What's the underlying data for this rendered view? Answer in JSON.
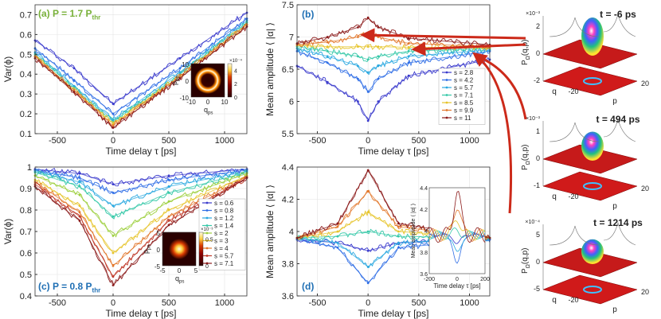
{
  "colors": {
    "series": [
      "#3a3acc",
      "#2f6ee6",
      "#2aa8e0",
      "#35c8a8",
      "#9ccf3c",
      "#e6c42a",
      "#e2762a",
      "#c03a2a",
      "#8b1a1a"
    ],
    "annot_green": "#79b13a",
    "annot_blue": "#1f6fb4",
    "arrow": "#cc2a1a",
    "fit_line": "#7a0f0f",
    "heatmap": [
      "#2a0000",
      "#8b0000",
      "#d83a00",
      "#ff8a00",
      "#ffd040",
      "#fffbe0"
    ]
  },
  "chart_data": [
    {
      "id": "a",
      "type": "line",
      "panel_label": "(a) P = 1.7 P",
      "panel_sub": "thr",
      "xlabel": "Time delay τ [ps]",
      "ylabel": "Var(ϕ)",
      "xlim": [
        -700,
        1200
      ],
      "ylim": [
        0.1,
        0.75
      ],
      "xticks": [
        -500,
        0,
        500,
        1000
      ],
      "yticks": [
        0.1,
        0.2,
        0.3,
        0.4,
        0.5,
        0.6,
        0.7
      ],
      "series": [
        {
          "name": "s = 2.8",
          "x": [
            -700,
            -350,
            0,
            600,
            1200
          ],
          "y": [
            0.57,
            0.43,
            0.25,
            0.48,
            0.71
          ]
        },
        {
          "name": "s = 4.2",
          "x": [
            -700,
            -350,
            0,
            600,
            1200
          ],
          "y": [
            0.53,
            0.37,
            0.2,
            0.43,
            0.68
          ]
        },
        {
          "name": "s = 5.7",
          "x": [
            -700,
            -350,
            0,
            600,
            1200
          ],
          "y": [
            0.51,
            0.34,
            0.17,
            0.41,
            0.67
          ]
        },
        {
          "name": "s = 7.1",
          "x": [
            -700,
            -350,
            0,
            600,
            1200
          ],
          "y": [
            0.5,
            0.33,
            0.16,
            0.4,
            0.66
          ]
        },
        {
          "name": "s = 8.5",
          "x": [
            -700,
            -350,
            0,
            600,
            1200
          ],
          "y": [
            0.49,
            0.32,
            0.15,
            0.39,
            0.65
          ]
        },
        {
          "name": "s = 9.9",
          "x": [
            -700,
            -350,
            0,
            600,
            1200
          ],
          "y": [
            0.49,
            0.32,
            0.14,
            0.39,
            0.65
          ]
        },
        {
          "name": "s = 11",
          "x": [
            -700,
            -350,
            0,
            600,
            1200
          ],
          "y": [
            0.48,
            0.31,
            0.13,
            0.38,
            0.64
          ]
        }
      ],
      "inset": {
        "kind": "ring",
        "xlabel": "q",
        "xlabel_sub": "ps",
        "ylabel": "p",
        "ylabel_sub": "ps",
        "xticks": [
          -10,
          0,
          10
        ],
        "yticks": [
          10,
          0,
          -10
        ],
        "cbar_ticks": [
          0,
          2,
          4
        ],
        "cbar_exp": "×10⁻⁴"
      }
    },
    {
      "id": "b",
      "type": "line",
      "panel_label": "(b)",
      "xlabel": "Time delay τ [ps]",
      "ylabel": "Mean amplitude ⟨ |α| ⟩",
      "xlim": [
        -700,
        1200
      ],
      "ylim": [
        5.5,
        7.5
      ],
      "xticks": [
        -500,
        0,
        500,
        1000
      ],
      "yticks": [
        5.5,
        6,
        6.5,
        7,
        7.5
      ],
      "series": [
        {
          "name": "s = 2.8",
          "x": [
            -700,
            -400,
            -100,
            0,
            100,
            400,
            1200
          ],
          "y": [
            6.55,
            6.3,
            6.0,
            5.7,
            6.0,
            6.4,
            6.65
          ]
        },
        {
          "name": "s = 4.2",
          "x": [
            -700,
            -400,
            -100,
            0,
            100,
            400,
            1200
          ],
          "y": [
            6.78,
            6.6,
            6.35,
            6.15,
            6.35,
            6.6,
            6.78
          ]
        },
        {
          "name": "s = 5.7",
          "x": [
            -700,
            -400,
            -100,
            0,
            100,
            400,
            1200
          ],
          "y": [
            6.82,
            6.7,
            6.55,
            6.45,
            6.55,
            6.7,
            6.8
          ]
        },
        {
          "name": "s = 7.1",
          "x": [
            -700,
            -400,
            -100,
            0,
            100,
            400,
            1200
          ],
          "y": [
            6.85,
            6.78,
            6.7,
            6.65,
            6.7,
            6.78,
            6.82
          ]
        },
        {
          "name": "s = 8.5",
          "x": [
            -700,
            -400,
            -100,
            0,
            100,
            400,
            1200
          ],
          "y": [
            6.87,
            6.85,
            6.85,
            6.85,
            6.85,
            6.84,
            6.83
          ]
        },
        {
          "name": "s = 9.9",
          "x": [
            -700,
            -400,
            -100,
            0,
            100,
            400,
            1200
          ],
          "y": [
            6.88,
            6.92,
            7.0,
            7.05,
            7.0,
            6.9,
            6.85
          ]
        },
        {
          "name": "s = 11",
          "x": [
            -700,
            -400,
            -100,
            0,
            100,
            400,
            1200
          ],
          "y": [
            6.9,
            7.0,
            7.15,
            7.3,
            7.15,
            6.98,
            6.88
          ]
        }
      ],
      "legend": [
        "s = 2.8",
        "s = 4.2",
        "s = 5.7",
        "s = 7.1",
        "s = 8.5",
        "s = 9.9",
        "s = 11"
      ]
    },
    {
      "id": "c",
      "type": "line",
      "panel_label": "(c) P = 0.8 P",
      "panel_sub": "thr",
      "xlabel": "Time delay τ [ps]",
      "ylabel": "Var(ϕ)",
      "xlim": [
        -700,
        1200
      ],
      "ylim": [
        0.4,
        1.0
      ],
      "xticks": [
        -500,
        0,
        500,
        1000
      ],
      "yticks": [
        0.4,
        0.5,
        0.6,
        0.7,
        0.8,
        0.9,
        1.0
      ],
      "series": [
        {
          "name": "s = 0.6",
          "x": [
            -700,
            -300,
            0,
            500,
            1200
          ],
          "y": [
            0.99,
            0.97,
            0.92,
            0.96,
            0.99
          ]
        },
        {
          "name": "s = 0.8",
          "x": [
            -700,
            -300,
            0,
            500,
            1200
          ],
          "y": [
            0.985,
            0.95,
            0.88,
            0.94,
            0.985
          ]
        },
        {
          "name": "s = 1.2",
          "x": [
            -700,
            -300,
            0,
            500,
            1200
          ],
          "y": [
            0.98,
            0.93,
            0.82,
            0.91,
            0.98
          ]
        },
        {
          "name": "s = 1.4",
          "x": [
            -700,
            -300,
            0,
            500,
            1200
          ],
          "y": [
            0.975,
            0.91,
            0.77,
            0.88,
            0.975
          ]
        },
        {
          "name": "s = 2",
          "x": [
            -700,
            -300,
            0,
            500,
            1200
          ],
          "y": [
            0.96,
            0.87,
            0.68,
            0.84,
            0.97
          ]
        },
        {
          "name": "s = 3",
          "x": [
            -700,
            -300,
            0,
            500,
            1200
          ],
          "y": [
            0.94,
            0.82,
            0.6,
            0.8,
            0.96
          ]
        },
        {
          "name": "s = 4",
          "x": [
            -700,
            -300,
            0,
            500,
            1200
          ],
          "y": [
            0.93,
            0.79,
            0.54,
            0.77,
            0.955
          ]
        },
        {
          "name": "s = 5.7",
          "x": [
            -700,
            -300,
            0,
            500,
            1200
          ],
          "y": [
            0.92,
            0.77,
            0.49,
            0.75,
            0.95
          ]
        },
        {
          "name": "s = 7.1",
          "x": [
            -700,
            -300,
            0,
            500,
            1200
          ],
          "y": [
            0.91,
            0.75,
            0.45,
            0.73,
            0.95
          ]
        }
      ],
      "legend": [
        "s = 0.6",
        "s = 0.8",
        "s = 1.2",
        "s = 1.4",
        "s = 2",
        "s = 3",
        "s = 4",
        "s = 5.7",
        "s = 7.1"
      ],
      "inset": {
        "kind": "blob",
        "xlabel": "q",
        "xlabel_sub": "ps",
        "ylabel": "p",
        "ylabel_sub": "ps",
        "xticks": [
          -5,
          0,
          5
        ],
        "yticks": [
          5,
          0,
          -5
        ],
        "cbar_ticks": [
          0,
          0.5
        ],
        "cbar_exp": "×10⁻³"
      }
    },
    {
      "id": "d",
      "type": "line",
      "panel_label": "(d)",
      "xlabel": "Time delay τ [ps]",
      "ylabel": "Mean amplitude ⟨ |α| ⟩",
      "xlim": [
        -700,
        1200
      ],
      "ylim": [
        3.6,
        4.4
      ],
      "xticks": [
        -500,
        0,
        500,
        1000
      ],
      "yticks": [
        3.6,
        3.8,
        4.0,
        4.2,
        4.4
      ],
      "series": [
        {
          "name": "s = 0.6",
          "x": [
            -700,
            -300,
            0,
            300,
            1200
          ],
          "y": [
            3.95,
            3.93,
            3.88,
            3.93,
            3.95
          ]
        },
        {
          "name": "s = 1.2",
          "x": [
            -700,
            -300,
            0,
            300,
            1200
          ],
          "y": [
            3.95,
            3.9,
            3.68,
            3.9,
            3.95
          ]
        },
        {
          "name": "s = 2",
          "x": [
            -700,
            -300,
            0,
            300,
            1200
          ],
          "y": [
            3.96,
            3.93,
            3.78,
            3.93,
            3.96
          ]
        },
        {
          "name": "s = 3",
          "x": [
            -700,
            -300,
            0,
            300,
            1200
          ],
          "y": [
            3.96,
            3.97,
            4.0,
            3.97,
            3.96
          ]
        },
        {
          "name": "s = 4",
          "x": [
            -700,
            -300,
            0,
            300,
            1200
          ],
          "y": [
            3.96,
            4.0,
            4.12,
            4.0,
            3.96
          ]
        },
        {
          "name": "s = 5.7",
          "x": [
            -700,
            -300,
            0,
            300,
            1200
          ],
          "y": [
            3.96,
            4.03,
            4.25,
            4.03,
            3.96
          ]
        },
        {
          "name": "s = 7.1",
          "x": [
            -700,
            -300,
            0,
            300,
            1200
          ],
          "y": [
            3.96,
            4.05,
            4.38,
            4.05,
            3.96
          ]
        }
      ],
      "inset": {
        "kind": "zoom",
        "ylabel": "Mean amplitude ⟨ |α| ⟩",
        "xlabel": "Time delay τ [ps]",
        "xlim": [
          -200,
          200
        ],
        "ylim": [
          3.6,
          4.4
        ],
        "xticks": [
          -200,
          0,
          200
        ],
        "yticks": [
          3.6,
          3.8,
          4.0,
          4.2,
          4.4
        ]
      }
    },
    {
      "id": "quasi",
      "type": "surface",
      "panels": [
        {
          "time_label": "t = -6 ps",
          "exp": "×10⁻³",
          "zlabel": "P",
          "zsub": "Ω",
          "zarg": "(q,p)",
          "zticks": [
            2,
            0,
            -2
          ],
          "peak": 0.0021
        },
        {
          "time_label": "t = 494 ps",
          "exp": "×10⁻³",
          "zlabel": "P",
          "zsub": "Ω",
          "zarg": "(q,p)",
          "zticks": [
            1,
            0,
            -1
          ],
          "peak": 0.001
        },
        {
          "time_label": "t = 1214 ps",
          "exp": "×10⁻⁴",
          "zlabel": "P",
          "zsub": "Ω",
          "zarg": "(q,p)",
          "zticks": [
            5,
            0,
            -5
          ],
          "peak": 0.0005
        }
      ],
      "axis_q": "q",
      "axis_p": "p",
      "tick_pos": "20",
      "tick_neg": "-20"
    }
  ]
}
